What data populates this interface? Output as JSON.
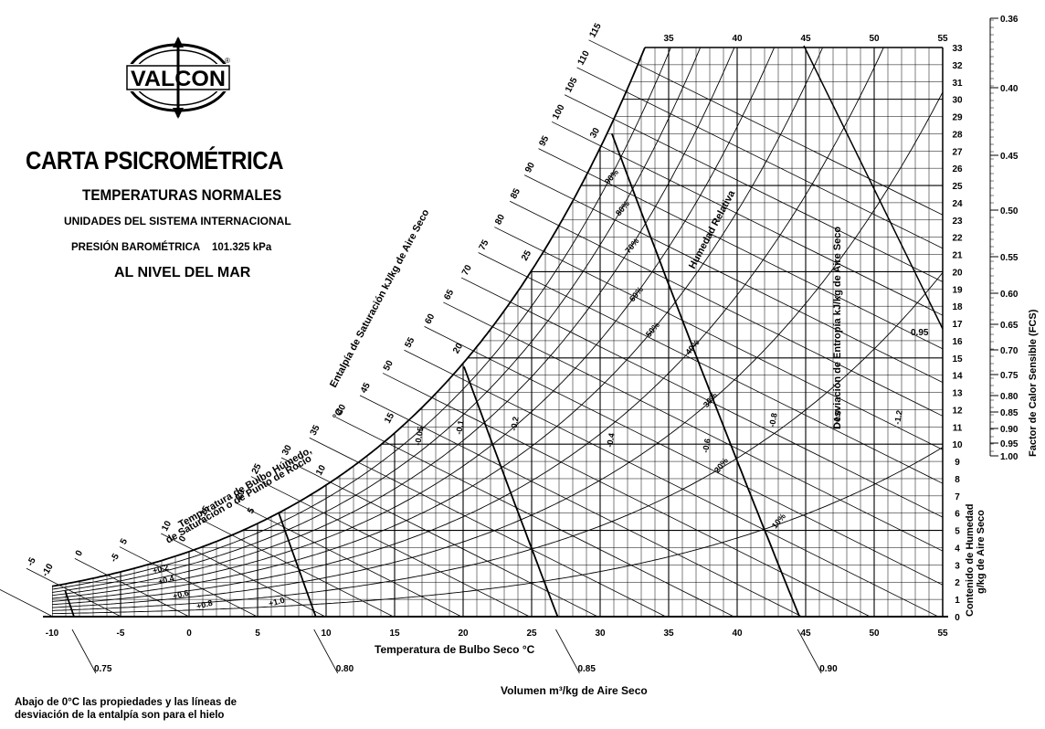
{
  "logo": {
    "text": "VALCON",
    "registered": "®"
  },
  "title": "CARTA PSICROMÉTRICA",
  "subtitle": "TEMPERATURAS NORMALES",
  "units": "UNIDADES DEL SISTEMA INTERNACIONAL",
  "pressure_label": "PRESIÓN BAROMÉTRICA",
  "pressure_value": "101.325 kPa",
  "sea_level": "AL NIVEL DEL MAR",
  "xlabel": "Temperatura de Bulbo Seco   °C",
  "volume_label": "Volumen     m³/kg de Aire Seco",
  "ylabel_right": "Contenido de Humedad",
  "ylabel_right_2": "g/kg de Aire Seco",
  "fcs_label": "Factor de Calor Sensible  (FCS)",
  "enthalpy_label": "Entalpía de Saturación    kJ/kg de Aire Seco",
  "wetbulb_label": "Temperatura de Bulbo Húmedo,",
  "wetbulb_label_2": "de Saturación o de Punto de Rocío",
  "wetbulb_unit": "°C",
  "rh_label": "Humedad Relativa",
  "entropy_label": "Desviación de Entropía    kJ/kg de Aire Seco",
  "note": "Abajo de 0°C las propiedades y las líneas de desviación de la entalpía son para el hielo",
  "chart_data": {
    "type": "psychrometric",
    "pressure_kpa": 101.325,
    "x_dry_bulb_c": {
      "min": -10,
      "max": 55,
      "ticks": [
        -10,
        -5,
        0,
        5,
        10,
        15,
        20,
        25,
        30,
        35,
        40,
        45,
        50,
        55
      ]
    },
    "y_humidity_g_kg": {
      "min": 0,
      "max": 33,
      "ticks": [
        0,
        1,
        2,
        3,
        4,
        5,
        6,
        7,
        8,
        9,
        10,
        11,
        12,
        13,
        14,
        15,
        16,
        17,
        18,
        19,
        20,
        21,
        22,
        23,
        24,
        25,
        26,
        27,
        28,
        29,
        30,
        31,
        32,
        33
      ]
    },
    "relative_humidity_pct": [
      10,
      20,
      30,
      40,
      50,
      60,
      70,
      80,
      90
    ],
    "wet_bulb_labels_c": [
      -10,
      -5,
      0,
      5,
      10,
      15,
      20,
      25,
      30
    ],
    "enthalpy_scale_kj_kg": [
      -10,
      -5,
      0,
      5,
      10,
      15,
      20,
      25,
      30,
      35,
      40,
      45,
      50,
      55,
      60,
      65,
      70,
      75,
      80,
      85,
      90,
      95,
      100,
      105,
      110,
      115
    ],
    "volume_lines_m3_kg": [
      0.75,
      0.8,
      0.85,
      0.9
    ],
    "enthalpy_deviation": [
      "+0.2",
      "+0.4",
      "+0.6",
      "+0.8",
      "+1.0",
      "-0.05",
      "-0.1",
      "-0.2",
      "-0.4",
      "-0.6",
      "-0.8",
      "-1.0",
      "-1.2"
    ],
    "fcs_scale": [
      "0.36",
      "0.40",
      "0.45",
      "0.50",
      "0.55",
      "0.60",
      "0.65",
      "0.70",
      "0.75",
      "0.80",
      "0.85",
      "0.90",
      "0.95",
      "1.00"
    ],
    "fcs_marker": "0.95",
    "top_ticks_c": [
      35,
      40,
      45,
      50,
      55
    ]
  }
}
